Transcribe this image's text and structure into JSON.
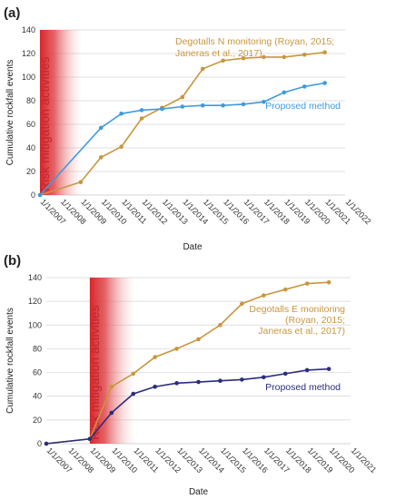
{
  "colors": {
    "mitigation": "#d7262b",
    "panel_a_series1": "#c8963e",
    "panel_a_series2": "#3d9be0",
    "panel_b_series1": "#c8963e",
    "panel_b_series2": "#2b2c7c",
    "grid": "#d4d4d4"
  },
  "chart_data": [
    {
      "type": "line",
      "panel_label": "(a)",
      "title": "",
      "xlabel": "Date",
      "ylabel": "Cumulative rockfall events",
      "ylim": [
        0,
        140
      ],
      "yticks": [
        0,
        20,
        40,
        60,
        80,
        100,
        120,
        140
      ],
      "xlim": [
        "1/1/2007",
        "1/1/2022"
      ],
      "xtick_labels": [
        "1/1/2007",
        "1/1/2008",
        "1/1/2009",
        "1/1/2010",
        "1/1/2011",
        "1/1/2012",
        "1/1/2013",
        "1/1/2014",
        "1/1/2015",
        "1/1/2016",
        "1/1/2017",
        "1/1/2018",
        "1/1/2019",
        "1/1/2020",
        "1/1/2021",
        "1/1/2022"
      ],
      "grid": "horizontal",
      "mitigation_period": {
        "label": "Risk mitigation activities",
        "start": "1/1/2007",
        "end": "1/1/2009"
      },
      "series": [
        {
          "name": "Degotalls N monitoring (Royan, 2015; Janeras et al., 2017)",
          "label_lines": [
            "Degotalls N monitoring (Royan, 2015;",
            "Janeras et al., 2017)"
          ],
          "color": "#c8963e",
          "x": [
            "1/1/2007",
            "1/1/2009",
            "1/1/2010",
            "1/1/2011",
            "1/1/2012",
            "1/1/2013",
            "1/1/2014",
            "1/1/2015",
            "1/1/2016",
            "1/1/2017",
            "1/1/2018",
            "1/1/2019",
            "1/1/2020",
            "1/1/2021"
          ],
          "values": [
            0,
            11,
            32,
            41,
            65,
            74,
            83,
            107,
            114,
            116,
            117,
            117,
            119,
            121
          ]
        },
        {
          "name": "Proposed method",
          "label_lines": [
            "Proposed method"
          ],
          "color": "#3d9be0",
          "x": [
            "1/1/2007",
            "1/1/2010",
            "1/1/2011",
            "1/1/2012",
            "1/1/2013",
            "1/1/2014",
            "1/1/2015",
            "1/1/2016",
            "1/1/2017",
            "1/1/2018",
            "1/1/2019",
            "1/1/2020",
            "1/1/2021"
          ],
          "values": [
            0,
            57,
            69,
            72,
            73,
            75,
            76,
            76,
            77,
            79,
            87,
            92,
            95
          ]
        }
      ]
    },
    {
      "type": "line",
      "panel_label": "(b)",
      "title": "",
      "xlabel": "Date",
      "ylabel": "Cumulative rockfall events",
      "ylim": [
        0,
        140
      ],
      "yticks": [
        0,
        20,
        40,
        60,
        80,
        100,
        120,
        140
      ],
      "xlim": [
        "1/1/2007",
        "1/1/2021"
      ],
      "xtick_labels": [
        "1/1/2007",
        "1/1/2008",
        "1/1/2009",
        "1/1/2010",
        "1/1/2011",
        "1/1/2012",
        "1/1/2013",
        "1/1/2014",
        "1/1/2015",
        "1/1/2016",
        "1/1/2017",
        "1/1/2018",
        "1/1/2019",
        "1/1/2020",
        "1/1/2021"
      ],
      "grid": "horizontal",
      "mitigation_period": {
        "label": "Risk mitigation activities",
        "start": "1/1/2009",
        "end": "1/1/2011"
      },
      "series": [
        {
          "name": "Degotalls E monitoring (Royan, 2015; Janeras et al., 2017)",
          "label_lines": [
            "Degotalls E monitoring",
            "(Royan, 2015;",
            "Janeras et al., 2017)"
          ],
          "color": "#c8963e",
          "x": [
            "1/1/2007",
            "1/1/2009",
            "1/1/2010",
            "1/1/2011",
            "1/1/2012",
            "1/1/2013",
            "1/1/2014",
            "1/1/2015",
            "1/1/2016",
            "1/1/2017",
            "1/1/2018",
            "1/1/2019",
            "1/1/2020"
          ],
          "values": [
            0,
            4,
            48,
            59,
            73,
            80,
            88,
            100,
            118,
            125,
            130,
            135,
            136
          ]
        },
        {
          "name": "Proposed method",
          "label_lines": [
            "Proposed method"
          ],
          "color": "#2b2c7c",
          "x": [
            "1/1/2007",
            "1/1/2009",
            "1/1/2010",
            "1/1/2011",
            "1/1/2012",
            "1/1/2013",
            "1/1/2014",
            "1/1/2015",
            "1/1/2016",
            "1/1/2017",
            "1/1/2018",
            "1/1/2019",
            "1/1/2020"
          ],
          "values": [
            0,
            4,
            26,
            42,
            48,
            51,
            52,
            53,
            54,
            56,
            59,
            62,
            63
          ]
        }
      ]
    }
  ]
}
